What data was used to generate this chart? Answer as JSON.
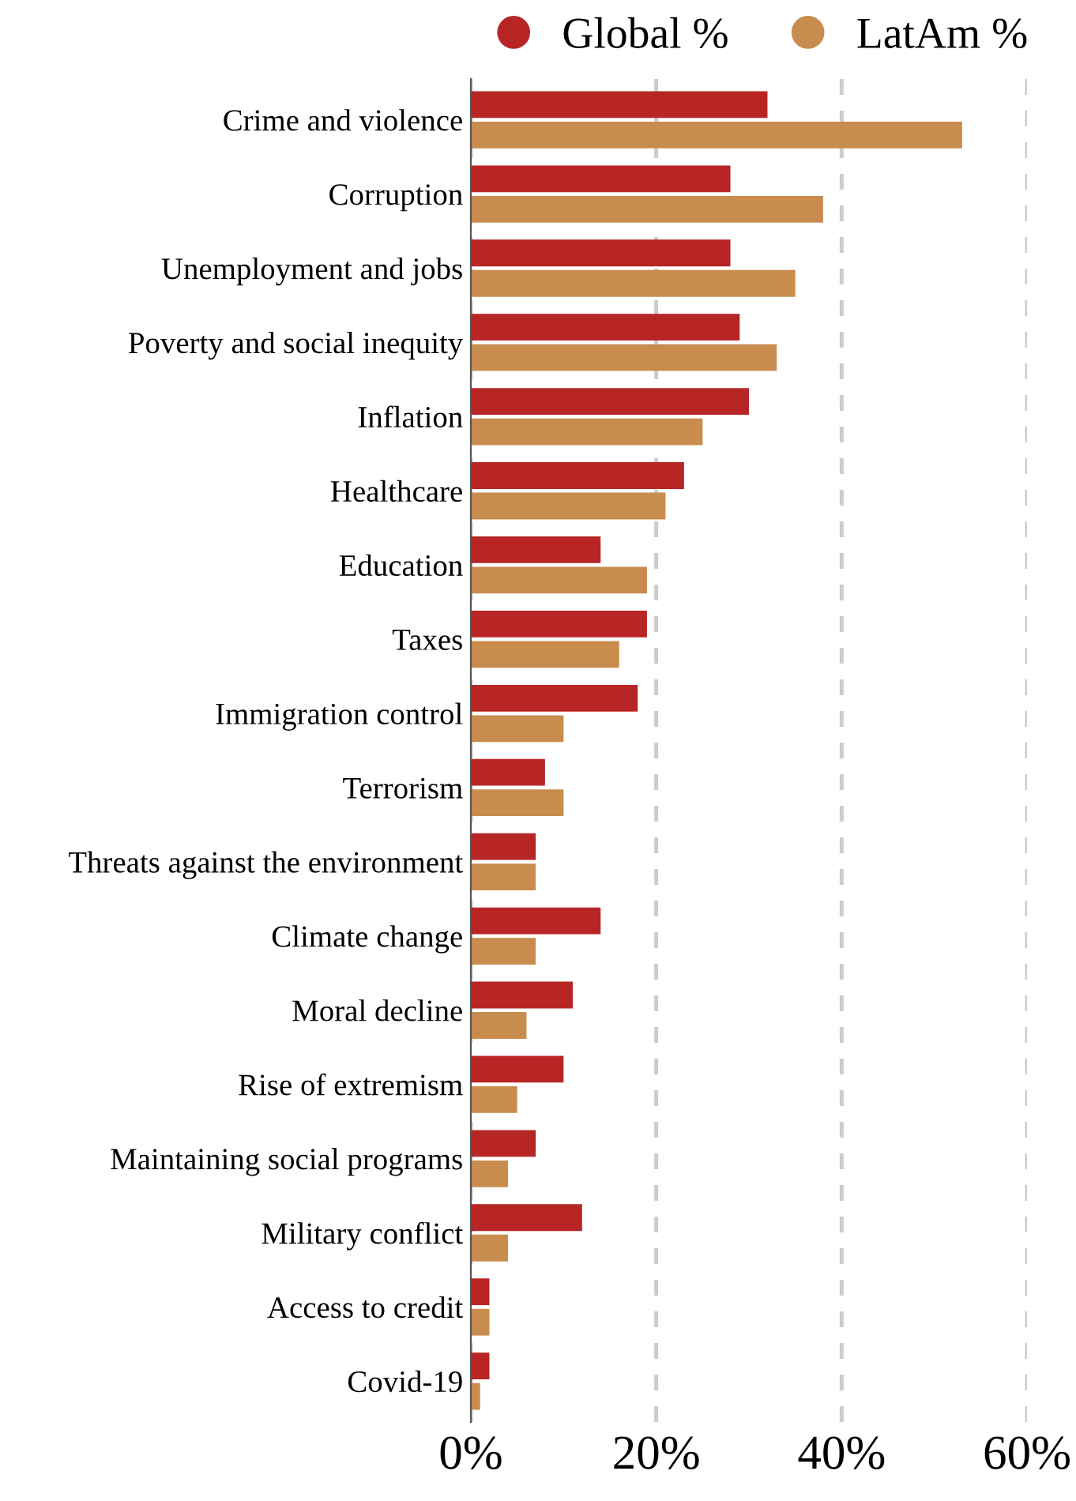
{
  "chart_data": {
    "type": "bar",
    "orientation": "horizontal",
    "categories": [
      "Crime and violence",
      "Corruption",
      "Unemployment and jobs",
      "Poverty and social inequity",
      "Inflation",
      "Healthcare",
      "Education",
      "Taxes",
      "Immigration control",
      "Terrorism",
      "Threats against the environment",
      "Climate change",
      "Moral decline",
      "Rise of extremism",
      "Maintaining social programs",
      "Military conflict",
      "Access to credit",
      "Covid-19"
    ],
    "series": [
      {
        "name": "Global %",
        "color": "#b82525",
        "values": [
          32,
          28,
          28,
          29,
          30,
          23,
          14,
          19,
          18,
          8,
          7,
          14,
          11,
          10,
          7,
          12,
          2,
          2
        ]
      },
      {
        "name": "LatAm %",
        "color": "#c88c4e",
        "values": [
          53,
          38,
          35,
          33,
          25,
          21,
          19,
          16,
          10,
          10,
          7,
          7,
          6,
          5,
          4,
          4,
          2,
          1
        ]
      }
    ],
    "xlim": [
      0,
      60
    ],
    "xticks": [
      {
        "value": 0,
        "label": "0%"
      },
      {
        "value": 20,
        "label": "20%"
      },
      {
        "value": 40,
        "label": "40%"
      },
      {
        "value": 60,
        "label": "60%"
      }
    ],
    "grid": "x",
    "legend": "top"
  }
}
